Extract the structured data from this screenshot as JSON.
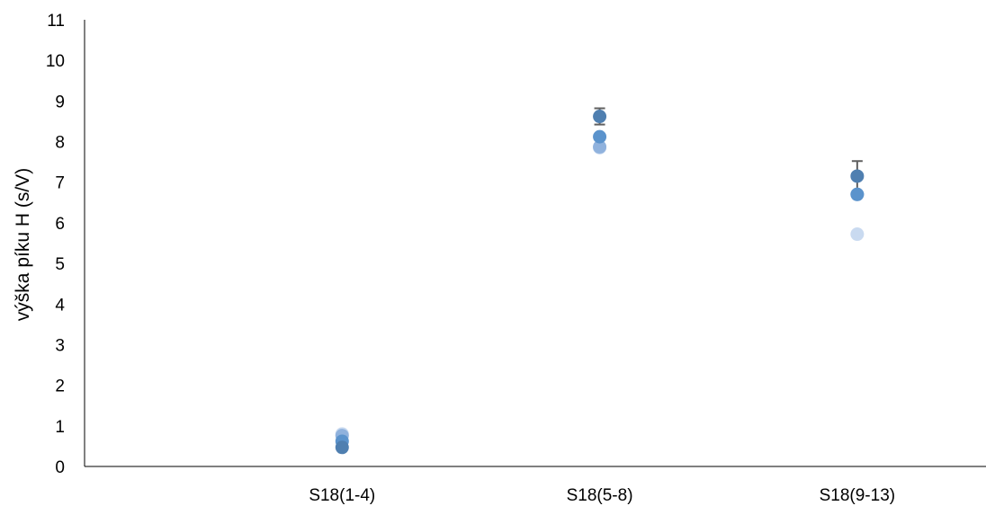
{
  "chart_data": {
    "type": "scatter",
    "title": "",
    "xlabel": "",
    "ylabel": "výška píku H (s/V)",
    "ylim": [
      0,
      11
    ],
    "yticks": [
      "0",
      "1",
      "2",
      "3",
      "4",
      "5",
      "6",
      "7",
      "8",
      "9",
      "10",
      "11"
    ],
    "categories": [
      "S18(1-4)",
      "S18(5-8)",
      "S18(9-13)"
    ],
    "grid": false,
    "legend": "none",
    "series": [
      {
        "color": "#4f7fb0",
        "values": [
          0.47,
          8.62,
          7.15
        ],
        "error_bars": [
          null,
          0.2,
          0.37
        ]
      },
      {
        "color": "#5b93cc",
        "values": [
          0.62,
          8.12,
          6.7
        ]
      },
      {
        "color": "#90b2dd",
        "values": [
          0.76,
          7.87,
          6.7
        ]
      },
      {
        "color": "#c9daf0",
        "values": [
          0.8,
          7.85,
          5.72
        ]
      }
    ],
    "errorbar_color": "#606060",
    "axis_color": "#000000"
  }
}
